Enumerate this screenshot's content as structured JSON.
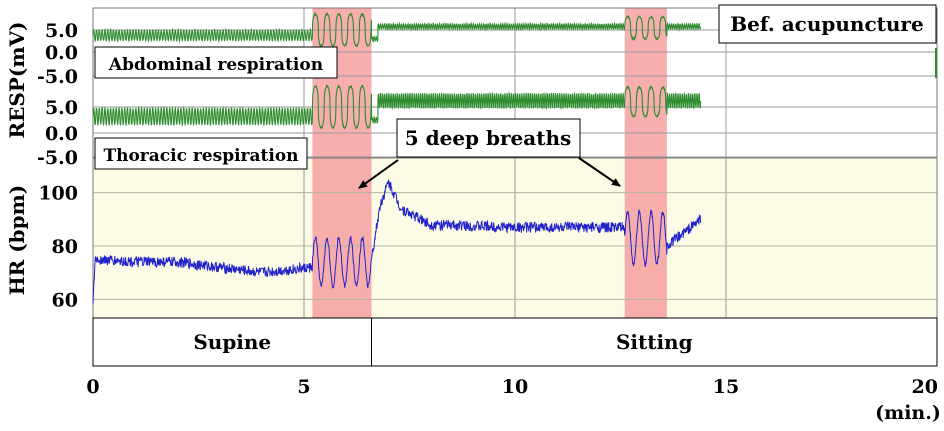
{
  "chart_data": {
    "type": "line",
    "title": "Bef. acupuncture",
    "annotation": "5 deep breaths",
    "xlabel": "(min.)",
    "xlim": [
      0,
      20
    ],
    "x_ticks": [
      0,
      5,
      10,
      15,
      20
    ],
    "x_tick_labels": [
      "0",
      "5",
      "10",
      "15",
      "20"
    ],
    "grid": true,
    "background": "#fcfce6",
    "deep_breath_intervals": [
      [
        5.2,
        6.6
      ],
      [
        12.6,
        13.6
      ]
    ],
    "posture": [
      {
        "label": "Supine",
        "start": 0,
        "end": 6.6
      },
      {
        "label": "Sitting",
        "start": 6.6,
        "end": 20
      }
    ],
    "resp_axis": {
      "label": "RESP(mV)",
      "ticks": [
        "5.0",
        "0.0",
        "-5.0"
      ]
    },
    "resp_series": [
      {
        "name": "Abdominal respiration",
        "color": "#2e8b2e",
        "segments": [
          {
            "start": 0.0,
            "end": 5.2,
            "baseline": 3.8,
            "amplitude": 1.2,
            "cycles_per_min": 15
          },
          {
            "start": 5.2,
            "end": 6.6,
            "baseline": 5.0,
            "amplitude": 3.6,
            "cycles_per_min": 3.6
          },
          {
            "start": 6.6,
            "end": 6.75,
            "baseline": 3.0,
            "amplitude": 0.5,
            "cycles_per_min": 20
          },
          {
            "start": 6.75,
            "end": 12.6,
            "baseline": 5.8,
            "amplitude": 0.6,
            "cycles_per_min": 20
          },
          {
            "start": 12.6,
            "end": 13.6,
            "baseline": 5.5,
            "amplitude": 2.5,
            "cycles_per_min": 3.6
          },
          {
            "start": 13.6,
            "end": 14.4,
            "baseline": 5.8,
            "amplitude": 0.6,
            "cycles_per_min": 20
          }
        ]
      },
      {
        "name": "Thoracic respiration",
        "color": "#2e8b2e",
        "segments": [
          {
            "start": 0.0,
            "end": 5.2,
            "baseline": 3.2,
            "amplitude": 1.6,
            "cycles_per_min": 15
          },
          {
            "start": 5.2,
            "end": 6.6,
            "baseline": 5.0,
            "amplitude": 4.0,
            "cycles_per_min": 3.6
          },
          {
            "start": 6.6,
            "end": 6.75,
            "baseline": 2.5,
            "amplitude": 0.5,
            "cycles_per_min": 20
          },
          {
            "start": 6.75,
            "end": 12.6,
            "baseline": 6.2,
            "amplitude": 1.4,
            "cycles_per_min": 20
          },
          {
            "start": 12.6,
            "end": 13.6,
            "baseline": 6.0,
            "amplitude": 2.8,
            "cycles_per_min": 3.6
          },
          {
            "start": 13.6,
            "end": 14.4,
            "baseline": 6.2,
            "amplitude": 1.4,
            "cycles_per_min": 20
          }
        ]
      }
    ],
    "hr_axis": {
      "label": "HR (bpm)",
      "ticks": [
        60,
        80,
        100
      ],
      "ylim": [
        53,
        113
      ]
    },
    "hr_series": {
      "name": "HR",
      "color": "#2222cc",
      "keypoints": [
        {
          "t": 0.0,
          "v": 57
        },
        {
          "t": 0.05,
          "v": 75
        },
        {
          "t": 1.0,
          "v": 74
        },
        {
          "t": 2.0,
          "v": 74
        },
        {
          "t": 3.0,
          "v": 72
        },
        {
          "t": 4.0,
          "v": 70
        },
        {
          "t": 5.2,
          "v": 72
        },
        {
          "t": 6.6,
          "v": 75
        },
        {
          "t": 6.8,
          "v": 95
        },
        {
          "t": 7.0,
          "v": 104
        },
        {
          "t": 7.3,
          "v": 94
        },
        {
          "t": 8.0,
          "v": 88
        },
        {
          "t": 10.0,
          "v": 87
        },
        {
          "t": 12.6,
          "v": 87
        },
        {
          "t": 13.6,
          "v": 80
        },
        {
          "t": 14.4,
          "v": 90
        }
      ],
      "deep_breath_oscillation": [
        {
          "start": 5.2,
          "end": 6.6,
          "center": 74,
          "amplitude": 9
        },
        {
          "start": 12.6,
          "end": 13.6,
          "center": 83,
          "amplitude": 10
        }
      ]
    }
  }
}
